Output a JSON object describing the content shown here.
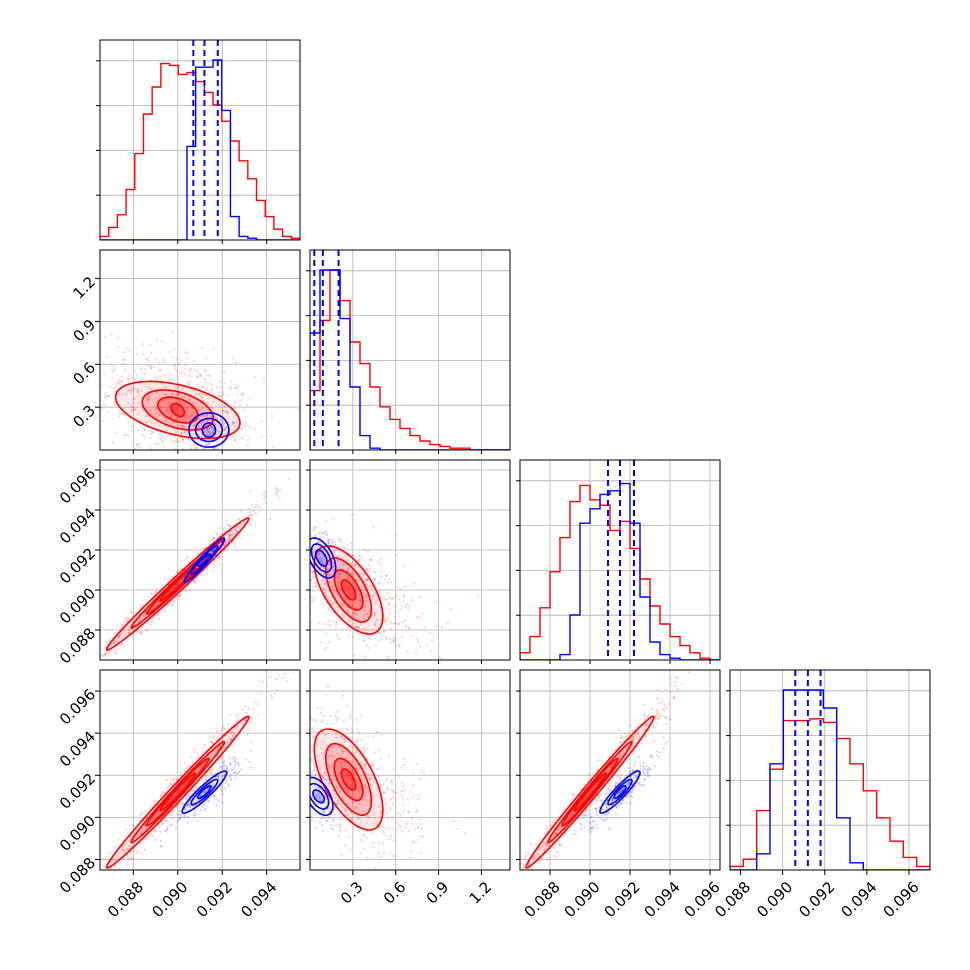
{
  "chart_data": {
    "type": "corner",
    "grid": true,
    "colors": {
      "red": "#ff0000",
      "blue": "#0000ff"
    },
    "series": [
      {
        "color": "red",
        "style": "filled density contours with scatter"
      },
      {
        "color": "blue",
        "style": "density contours with scatter"
      }
    ],
    "parameters": [
      {
        "range": [
          0.0865,
          0.0955
        ],
        "ticks": [
          0.088,
          0.09,
          0.092,
          0.094
        ],
        "tick_labels": [
          "0.088",
          "0.090",
          "0.092",
          "0.094"
        ]
      },
      {
        "range": [
          0.0,
          1.4
        ],
        "ticks": [
          0.3,
          0.6,
          0.9,
          1.2
        ],
        "tick_labels": [
          "0.3",
          "0.6",
          "0.9",
          "1.2"
        ]
      },
      {
        "range": [
          0.0865,
          0.0965
        ],
        "ticks": [
          0.088,
          0.09,
          0.092,
          0.094,
          0.096
        ],
        "tick_labels": [
          "0.088",
          "0.090",
          "0.092",
          "0.094",
          "0.096"
        ]
      },
      {
        "range": [
          0.0875,
          0.097
        ],
        "ticks": [
          0.088,
          0.09,
          0.092,
          0.094,
          0.096
        ],
        "tick_labels": [
          "0.088",
          "0.090",
          "0.092",
          "0.094",
          "0.096"
        ]
      }
    ],
    "marginals": [
      {
        "param": 0,
        "hist_max": 100,
        "red": {
          "edges_range": [
            0.0865,
            0.0955
          ],
          "counts": [
            2,
            7,
            14,
            28,
            48,
            70,
            85,
            98,
            97,
            92,
            93,
            88,
            82,
            75,
            66,
            55,
            44,
            34,
            22,
            13,
            6,
            2,
            1
          ]
        },
        "blue": {
          "edges_range": [
            0.0865,
            0.0955
          ],
          "counts": [
            0,
            0,
            0,
            0,
            0,
            0,
            0,
            0,
            0,
            0,
            52,
            96,
            96,
            100,
            72,
            13,
            2,
            1,
            0,
            0,
            0,
            0,
            0
          ]
        },
        "blue_quantiles": [
          0.0907,
          0.0912,
          0.0918
        ]
      },
      {
        "param": 1,
        "hist_max": 100,
        "red": {
          "edges_range": [
            0.0,
            1.4
          ],
          "counts": [
            33,
            72,
            100,
            83,
            60,
            48,
            35,
            24,
            17,
            12,
            8,
            5,
            3,
            2,
            1,
            1,
            0,
            0,
            0,
            0
          ]
        },
        "blue": {
          "edges_range": [
            0.0,
            1.4
          ],
          "counts": [
            65,
            100,
            100,
            73,
            35,
            8,
            1,
            0,
            0,
            0,
            0,
            0,
            0,
            0,
            0,
            0,
            0,
            0,
            0,
            0
          ]
        },
        "blue_quantiles": [
          0.03,
          0.09,
          0.2
        ]
      },
      {
        "param": 2,
        "hist_max": 100,
        "red": {
          "edges_range": [
            0.0865,
            0.0965
          ],
          "counts": [
            4,
            13,
            29,
            49,
            68,
            88,
            97,
            89,
            86,
            72,
            77,
            62,
            45,
            30,
            20,
            13,
            8,
            4,
            1,
            0
          ]
        },
        "blue": {
          "edges_range": [
            0.0865,
            0.0965
          ],
          "counts": [
            0,
            0,
            0,
            0,
            3,
            25,
            76,
            84,
            92,
            94,
            98,
            76,
            35,
            10,
            3,
            1,
            0,
            0,
            0,
            0
          ]
        },
        "blue_quantiles": [
          0.0909,
          0.0915,
          0.0922
        ]
      },
      {
        "param": 3,
        "hist_max": 100,
        "red": {
          "edges_range": [
            0.0875,
            0.097
          ],
          "counts": [
            2,
            6,
            33,
            56,
            83,
            83,
            84,
            82,
            73,
            59,
            44,
            29,
            16,
            7,
            2
          ]
        },
        "blue": {
          "edges_range": [
            0.0875,
            0.097
          ],
          "counts": [
            0,
            0,
            9,
            59,
            100,
            100,
            100,
            90,
            29,
            4,
            0,
            0,
            0,
            0,
            0
          ]
        },
        "blue_quantiles": [
          0.0906,
          0.0912,
          0.0918
        ]
      }
    ],
    "joints": [
      {
        "x": 0,
        "y": 1,
        "red": {
          "center": [
            0.09,
            0.28
          ],
          "contours": [
            {
              "sx": 0.0003,
              "sy": 0.045,
              "rho": -0.4
            },
            {
              "sx": 0.0009,
              "sy": 0.09,
              "rho": -0.4
            },
            {
              "sx": 0.0016,
              "sy": 0.14,
              "rho": -0.4
            },
            {
              "sx": 0.0028,
              "sy": 0.2,
              "rho": -0.45
            }
          ],
          "scatter": {
            "sx": 0.0018,
            "sy": 0.23,
            "rho": -0.4,
            "n": 650
          }
        },
        "blue": {
          "center": [
            0.0914,
            0.14
          ],
          "contours": [
            {
              "sx": 0.0003,
              "sy": 0.05,
              "rho": 0.0
            },
            {
              "sx": 0.0006,
              "sy": 0.08,
              "rho": 0.0
            },
            {
              "sx": 0.0009,
              "sy": 0.12,
              "rho": 0.0
            }
          ],
          "scatter": {
            "sx": 0.0006,
            "sy": 0.08,
            "rho": 0.0,
            "n": 120
          }
        }
      },
      {
        "x": 0,
        "y": 2,
        "red": {
          "center": [
            0.09,
            0.0903
          ],
          "contours": [
            {
              "sx": 0.0008,
              "sy": 0.00085,
              "rho": 0.98
            },
            {
              "sx": 0.0014,
              "sy": 0.0015,
              "rho": 0.985
            },
            {
              "sx": 0.0021,
              "sy": 0.0022,
              "rho": 0.99
            },
            {
              "sx": 0.0032,
              "sy": 0.0033,
              "rho": 0.99
            }
          ],
          "scatter": {
            "sx": 0.002,
            "sy": 0.0021,
            "rho": 0.985,
            "n": 700
          }
        },
        "blue": {
          "center": [
            0.0912,
            0.0915
          ],
          "contours": [
            {
              "sx": 0.0003,
              "sy": 0.0003,
              "rho": 0.9
            },
            {
              "sx": 0.0006,
              "sy": 0.0007,
              "rho": 0.95
            },
            {
              "sx": 0.0009,
              "sy": 0.0011,
              "rho": 0.96
            }
          ],
          "scatter": {
            "sx": 0.0007,
            "sy": 0.0008,
            "rho": 0.95,
            "n": 250
          }
        }
      },
      {
        "x": 1,
        "y": 2,
        "red": {
          "center": [
            0.27,
            0.09
          ],
          "contours": [
            {
              "sx": 0.05,
              "sy": 0.0005,
              "rho": -0.6
            },
            {
              "sx": 0.1,
              "sy": 0.001,
              "rho": -0.6
            },
            {
              "sx": 0.16,
              "sy": 0.0016,
              "rho": -0.6
            },
            {
              "sx": 0.24,
              "sy": 0.0022,
              "rho": -0.6
            }
          ],
          "scatter": {
            "sx": 0.25,
            "sy": 0.0016,
            "rho": -0.55,
            "n": 650
          }
        },
        "blue": {
          "center": [
            0.08,
            0.0916
          ],
          "contours": [
            {
              "sx": 0.04,
              "sy": 0.0004,
              "rho": -0.5
            },
            {
              "sx": 0.07,
              "sy": 0.0007,
              "rho": -0.5
            },
            {
              "sx": 0.1,
              "sy": 0.001,
              "rho": -0.5
            }
          ],
          "scatter": {
            "sx": 0.08,
            "sy": 0.0008,
            "rho": -0.5,
            "n": 150
          }
        }
      },
      {
        "x": 0,
        "y": 3,
        "red": {
          "center": [
            0.09,
            0.0912
          ],
          "contours": [
            {
              "sx": 0.0008,
              "sy": 0.0009,
              "rho": 0.98
            },
            {
              "sx": 0.0014,
              "sy": 0.0016,
              "rho": 0.985
            },
            {
              "sx": 0.0021,
              "sy": 0.0024,
              "rho": 0.99
            },
            {
              "sx": 0.0032,
              "sy": 0.0036,
              "rho": 0.99
            }
          ],
          "scatter": {
            "sx": 0.002,
            "sy": 0.0023,
            "rho": 0.985,
            "n": 700
          }
        },
        "blue": {
          "center": [
            0.0912,
            0.0912
          ],
          "contours": [
            {
              "sx": 0.0003,
              "sy": 0.0003,
              "rho": 0.85
            },
            {
              "sx": 0.0006,
              "sy": 0.0006,
              "rho": 0.9
            },
            {
              "sx": 0.001,
              "sy": 0.001,
              "rho": 0.92
            }
          ],
          "scatter": {
            "sx": 0.0008,
            "sy": 0.0008,
            "rho": 0.9,
            "n": 300
          }
        }
      },
      {
        "x": 1,
        "y": 3,
        "red": {
          "center": [
            0.27,
            0.0918
          ],
          "contours": [
            {
              "sx": 0.05,
              "sy": 0.0005,
              "rho": -0.6
            },
            {
              "sx": 0.1,
              "sy": 0.001,
              "rho": -0.6
            },
            {
              "sx": 0.16,
              "sy": 0.0017,
              "rho": -0.6
            },
            {
              "sx": 0.24,
              "sy": 0.0024,
              "rho": -0.6
            }
          ],
          "scatter": {
            "sx": 0.25,
            "sy": 0.0017,
            "rho": -0.55,
            "n": 650
          }
        },
        "blue": {
          "center": [
            0.06,
            0.091
          ],
          "contours": [
            {
              "sx": 0.04,
              "sy": 0.0003,
              "rho": -0.5
            },
            {
              "sx": 0.07,
              "sy": 0.0006,
              "rho": -0.5
            },
            {
              "sx": 0.1,
              "sy": 0.0009,
              "rho": -0.5
            }
          ],
          "scatter": {
            "sx": 0.08,
            "sy": 0.0007,
            "rho": -0.5,
            "n": 150
          }
        }
      },
      {
        "x": 2,
        "y": 3,
        "red": {
          "center": [
            0.09,
            0.0912
          ],
          "contours": [
            {
              "sx": 0.0008,
              "sy": 0.0009,
              "rho": 0.98
            },
            {
              "sx": 0.0014,
              "sy": 0.0016,
              "rho": 0.985
            },
            {
              "sx": 0.0021,
              "sy": 0.0024,
              "rho": 0.99
            },
            {
              "sx": 0.0032,
              "sy": 0.0036,
              "rho": 0.99
            }
          ],
          "scatter": {
            "sx": 0.002,
            "sy": 0.0023,
            "rho": 0.985,
            "n": 700
          }
        },
        "blue": {
          "center": [
            0.0915,
            0.0912
          ],
          "contours": [
            {
              "sx": 0.0003,
              "sy": 0.0003,
              "rho": 0.85
            },
            {
              "sx": 0.0006,
              "sy": 0.0006,
              "rho": 0.9
            },
            {
              "sx": 0.001,
              "sy": 0.001,
              "rho": 0.92
            }
          ],
          "scatter": {
            "sx": 0.0008,
            "sy": 0.0008,
            "rho": 0.9,
            "n": 300
          }
        }
      }
    ]
  }
}
